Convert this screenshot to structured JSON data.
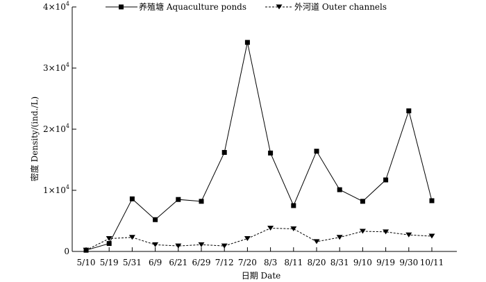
{
  "chart_data": {
    "type": "line",
    "xlabel": "日期 Date",
    "ylabel": "密度 Density/(ind./L)",
    "categories": [
      "5/10",
      "5/19",
      "5/31",
      "6/9",
      "6/21",
      "6/29",
      "7/12",
      "7/20",
      "8/3",
      "8/11",
      "8/20",
      "8/31",
      "9/10",
      "9/19",
      "9/30",
      "10/11"
    ],
    "ylim": [
      0,
      40000
    ],
    "yticks": [
      {
        "value": 0,
        "base": "0",
        "exp": ""
      },
      {
        "value": 10000,
        "base": "1×10",
        "exp": "4"
      },
      {
        "value": 20000,
        "base": "2×10",
        "exp": "4"
      },
      {
        "value": 30000,
        "base": "3×10",
        "exp": "4"
      },
      {
        "value": 40000,
        "base": "4×10",
        "exp": "4"
      }
    ],
    "grid": false,
    "legend_position": "top",
    "series": [
      {
        "name": "养殖塘 Aquaculture ponds",
        "marker": "square",
        "line_style": "solid",
        "color": "#000000",
        "values": [
          200,
          1300,
          8600,
          5200,
          8500,
          8200,
          16200,
          34200,
          16100,
          7500,
          16400,
          10100,
          8200,
          11700,
          23000,
          8300
        ]
      },
      {
        "name": "外河道 Outer channels",
        "marker": "triangle-down",
        "line_style": "dashed",
        "color": "#000000",
        "values": [
          200,
          2100,
          2300,
          1100,
          900,
          1100,
          900,
          2100,
          3800,
          3700,
          1600,
          2300,
          3300,
          3200,
          2700,
          2500
        ]
      }
    ]
  }
}
